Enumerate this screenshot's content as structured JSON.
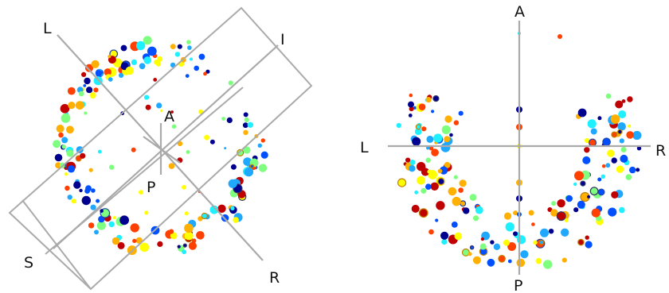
{
  "left_panel": {
    "labels": {
      "L": "L",
      "I": "I",
      "A": "A",
      "P": "P",
      "S": "S",
      "R": "R"
    }
  },
  "right_panel": {
    "labels": {
      "A": "A",
      "L": "L",
      "R": "R",
      "P": "P"
    }
  },
  "palette": {
    "dark_blue": "#00008f",
    "blue": "#0050ff",
    "light_blue": "#20a8ff",
    "cyan": "#1ff0ff",
    "green": "#7fff7f",
    "yellow": "#ffff00",
    "orange": "#ffb000",
    "red_orange": "#ff4000",
    "dark_red": "#c00000",
    "outline_dark": "#333366",
    "outline_gold": "#c08000",
    "outline_blue": "#2244aa"
  }
}
